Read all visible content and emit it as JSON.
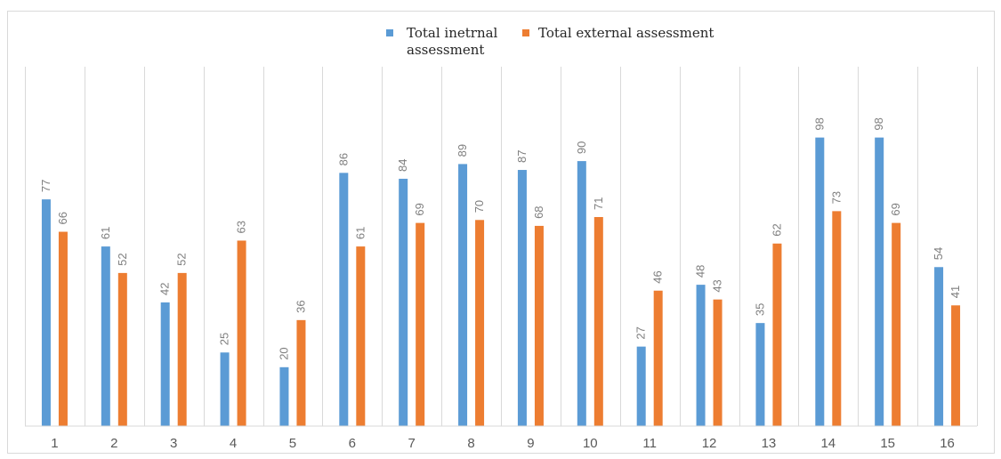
{
  "chart_data": {
    "type": "bar",
    "title": "",
    "xlabel": "",
    "ylabel": "",
    "categories": [
      "1",
      "2",
      "3",
      "4",
      "5",
      "6",
      "7",
      "8",
      "9",
      "10",
      "11",
      "12",
      "13",
      "14",
      "15",
      "16"
    ],
    "series": [
      {
        "name": "Total inetrnal assessment",
        "name_lines": [
          "Total inetrnal",
          "assessment"
        ],
        "color": "#5b9bd5",
        "values": [
          77,
          61,
          42,
          25,
          20,
          86,
          84,
          89,
          87,
          90,
          27,
          48,
          35,
          98,
          98,
          54
        ]
      },
      {
        "name": "Total external assessment",
        "name_lines": [
          "Total external assessment"
        ],
        "color": "#ed7d31",
        "values": [
          66,
          52,
          52,
          63,
          36,
          61,
          69,
          70,
          68,
          71,
          46,
          43,
          62,
          73,
          69,
          41
        ]
      }
    ],
    "ylim": [
      0,
      105
    ],
    "grid": "vertical category separators",
    "legend_position": "top-center",
    "data_labels": "rotated vertical above bars"
  }
}
